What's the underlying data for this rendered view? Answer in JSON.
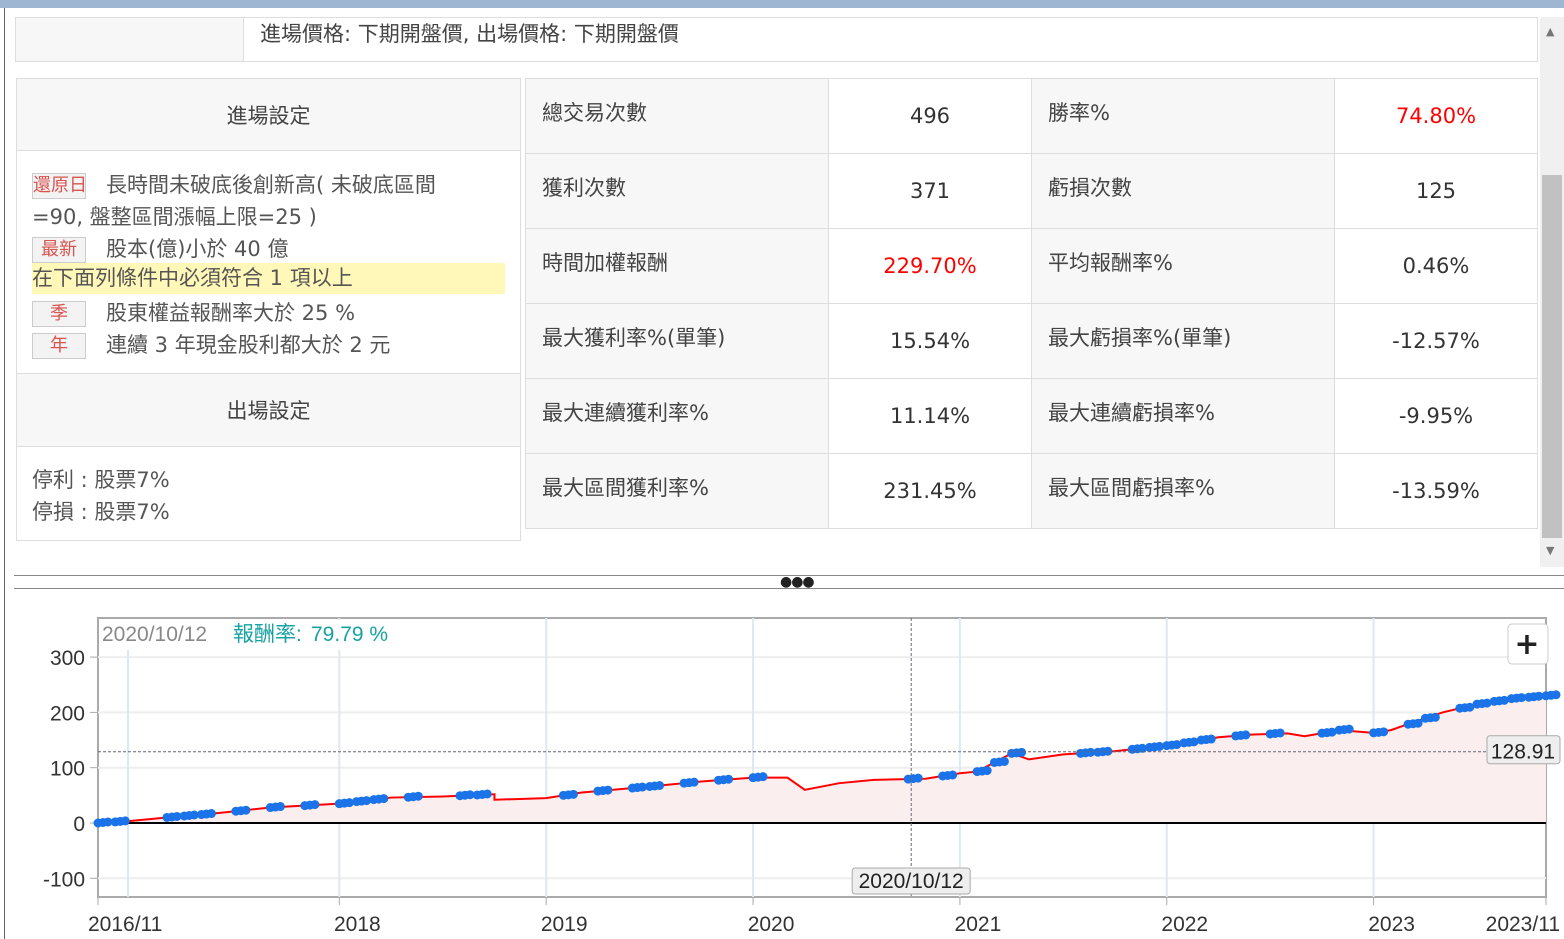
{
  "top_row": {
    "text": "進場價格: 下期開盤價, 出場價格: 下期開盤價"
  },
  "entry": {
    "header": "進場設定",
    "conditions": [
      {
        "badge": "還原日",
        "text": "長時間未破底後創新高( 未破底區間",
        "text2": "=90, 盤整區間漲幅上限=25 )"
      },
      {
        "badge": "最新",
        "text": "股本(億)小於 40 億"
      }
    ],
    "group_note": "在下面列條件中必須符合 1 項以上",
    "group_conditions": [
      {
        "badge": "季",
        "text": "股東權益報酬率大於 25 %"
      },
      {
        "badge": "年",
        "text": "連續 3 年現金股利都大於 2 元"
      }
    ]
  },
  "exit": {
    "header": "出場設定",
    "lines": [
      "停利 : 股票7%",
      "停損 : 股票7%"
    ]
  },
  "stats": [
    [
      {
        "label": "總交易次數",
        "value": "496"
      },
      {
        "label": "勝率%",
        "value": "74.80%",
        "red": true
      }
    ],
    [
      {
        "label": "獲利次數",
        "value": "371"
      },
      {
        "label": "虧損次數",
        "value": "125"
      }
    ],
    [
      {
        "label": "時間加權報酬",
        "value": "229.70%",
        "red": true
      },
      {
        "label": "平均報酬率%",
        "value": "0.46%"
      }
    ],
    [
      {
        "label": "最大獲利率%(單筆)",
        "value": "15.54%"
      },
      {
        "label": "最大虧損率%(單筆)",
        "value": "-12.57%"
      }
    ],
    [
      {
        "label": "最大連續獲利率%",
        "value": "11.14%"
      },
      {
        "label": "最大連續虧損率%",
        "value": "-9.95%"
      }
    ],
    [
      {
        "label": "最大區間獲利率%",
        "value": "231.45%"
      },
      {
        "label": "最大區間虧損率%",
        "value": "-13.59%"
      }
    ]
  ],
  "splitter": {
    "icon": "ellipsis-icon"
  },
  "chart_data": {
    "type": "line",
    "tooltip": {
      "date": "2020/10/12",
      "label": "報酬率:",
      "value": "79.79 %"
    },
    "crosshair_x_label": "2020/10/12",
    "crosshair_y_label": "128.91",
    "zoom_button": "+",
    "y_ticks": [
      "300",
      "200",
      "100",
      "0",
      "-100"
    ],
    "ylim": [
      -135,
      330
    ],
    "x_ticks": [
      "2016/11",
      "2018",
      "2019",
      "2020",
      "2021",
      "2022",
      "2023",
      "2023/11"
    ],
    "xlim": [
      "2016-11",
      "2023-11"
    ],
    "colors": {
      "line": "#ff0000",
      "fill": "#fbeeee",
      "markers": "#1a73e8",
      "tooltip_value": "#17a2a2"
    },
    "series": [
      [
        "2016-11",
        0
      ],
      [
        "2017-01",
        4
      ],
      [
        "2017-03",
        10
      ],
      [
        "2017-06",
        18
      ],
      [
        "2017-09",
        28
      ],
      [
        "2018-01",
        35
      ],
      [
        "2018-04",
        46
      ],
      [
        "2018-07",
        48
      ],
      [
        "2018-10",
        52
      ],
      [
        "2018-10",
        42
      ],
      [
        "2019-01",
        45
      ],
      [
        "2019-03",
        55
      ],
      [
        "2019-07",
        66
      ],
      [
        "2019-10",
        75
      ],
      [
        "2020-01",
        82
      ],
      [
        "2020-03",
        82
      ],
      [
        "2020-04",
        60
      ],
      [
        "2020-06",
        72
      ],
      [
        "2020-08",
        78
      ],
      [
        "2020-11",
        80
      ],
      [
        "2021-01",
        90
      ],
      [
        "2021-02",
        93
      ],
      [
        "2021-04",
        126
      ],
      [
        "2021-05",
        115
      ],
      [
        "2021-07",
        124
      ],
      [
        "2021-10",
        130
      ],
      [
        "2022-01",
        140
      ],
      [
        "2022-04",
        155
      ],
      [
        "2022-06",
        160
      ],
      [
        "2022-08",
        162
      ],
      [
        "2022-09",
        157
      ],
      [
        "2022-11",
        168
      ],
      [
        "2023-01",
        163
      ],
      [
        "2023-02",
        168
      ],
      [
        "2023-05",
        200
      ],
      [
        "2023-07",
        215
      ],
      [
        "2023-09",
        225
      ],
      [
        "2023-11",
        230
      ]
    ],
    "markers": [
      "2016-11",
      "2016-12",
      "2017-03",
      "2017-04",
      "2017-05",
      "2017-07",
      "2017-09",
      "2017-11",
      "2018-01",
      "2018-02",
      "2018-03",
      "2018-05",
      "2018-08",
      "2018-09",
      "2019-02",
      "2019-04",
      "2019-06",
      "2019-07",
      "2019-09",
      "2019-11",
      "2020-01",
      "2020-10",
      "2020-12",
      "2021-02",
      "2021-03",
      "2021-04",
      "2021-08",
      "2021-09",
      "2021-11",
      "2021-12",
      "2022-01",
      "2022-02",
      "2022-03",
      "2022-05",
      "2022-07",
      "2022-10",
      "2022-11",
      "2023-01",
      "2023-03",
      "2023-04",
      "2023-06",
      "2023-07",
      "2023-08",
      "2023-09",
      "2023-10",
      "2023-11"
    ]
  }
}
